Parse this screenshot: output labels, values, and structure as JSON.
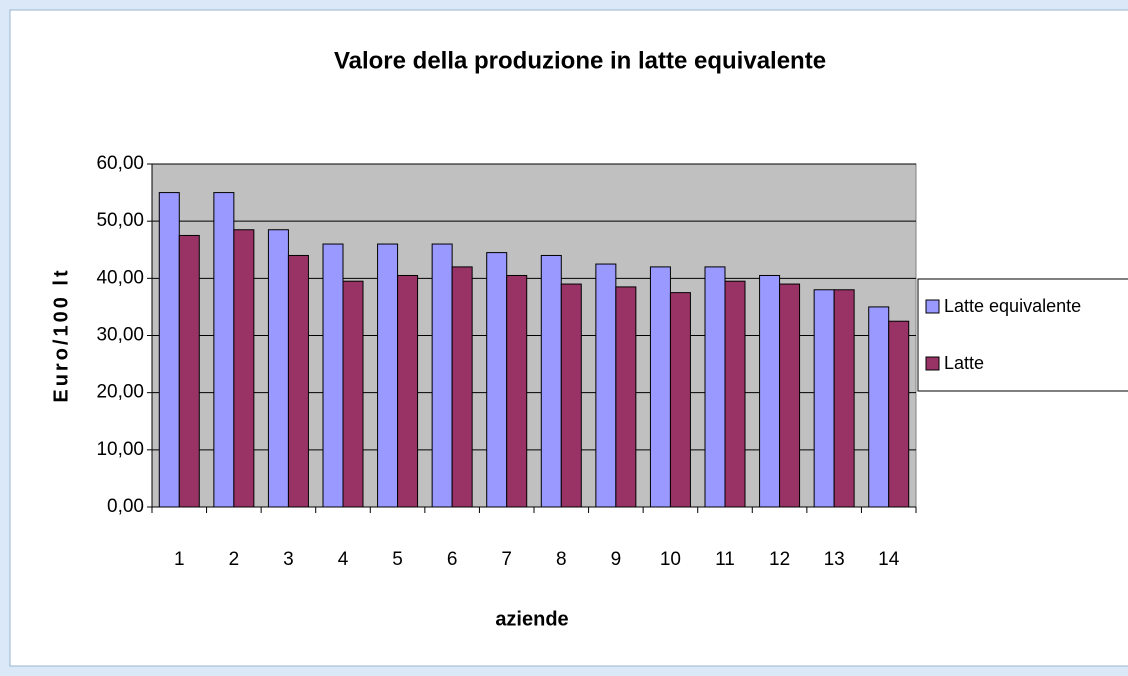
{
  "chart_data": {
    "type": "bar",
    "title": "Valore della produzione in latte equivalente",
    "x_label": "aziende",
    "y_label": "Euro/100 lt",
    "categories": [
      "1",
      "2",
      "3",
      "4",
      "5",
      "6",
      "7",
      "8",
      "9",
      "10",
      "11",
      "12",
      "13",
      "14"
    ],
    "series": [
      {
        "name": "Latte equivalente",
        "color": "#9999ff",
        "values": [
          55,
          55,
          48.5,
          46,
          46,
          46,
          44.5,
          44,
          42.5,
          42,
          42,
          40.5,
          38,
          35
        ]
      },
      {
        "name": "Latte",
        "color": "#993366",
        "values": [
          47.5,
          48.5,
          44,
          39.5,
          40.5,
          42,
          40.5,
          39,
          38.5,
          37.5,
          39.5,
          39,
          38,
          32.5
        ]
      }
    ],
    "ylim": [
      0,
      60
    ],
    "yticks": [
      {
        "value": 0,
        "label": "0,00"
      },
      {
        "value": 10,
        "label": "10,00"
      },
      {
        "value": 20,
        "label": "20,00"
      },
      {
        "value": 30,
        "label": "30,00"
      },
      {
        "value": 40,
        "label": "40,00"
      },
      {
        "value": 50,
        "label": "50,00"
      },
      {
        "value": 60,
        "label": "60,00"
      }
    ],
    "grid": true,
    "plot_background": "#c0c0c0",
    "legend": "right"
  }
}
